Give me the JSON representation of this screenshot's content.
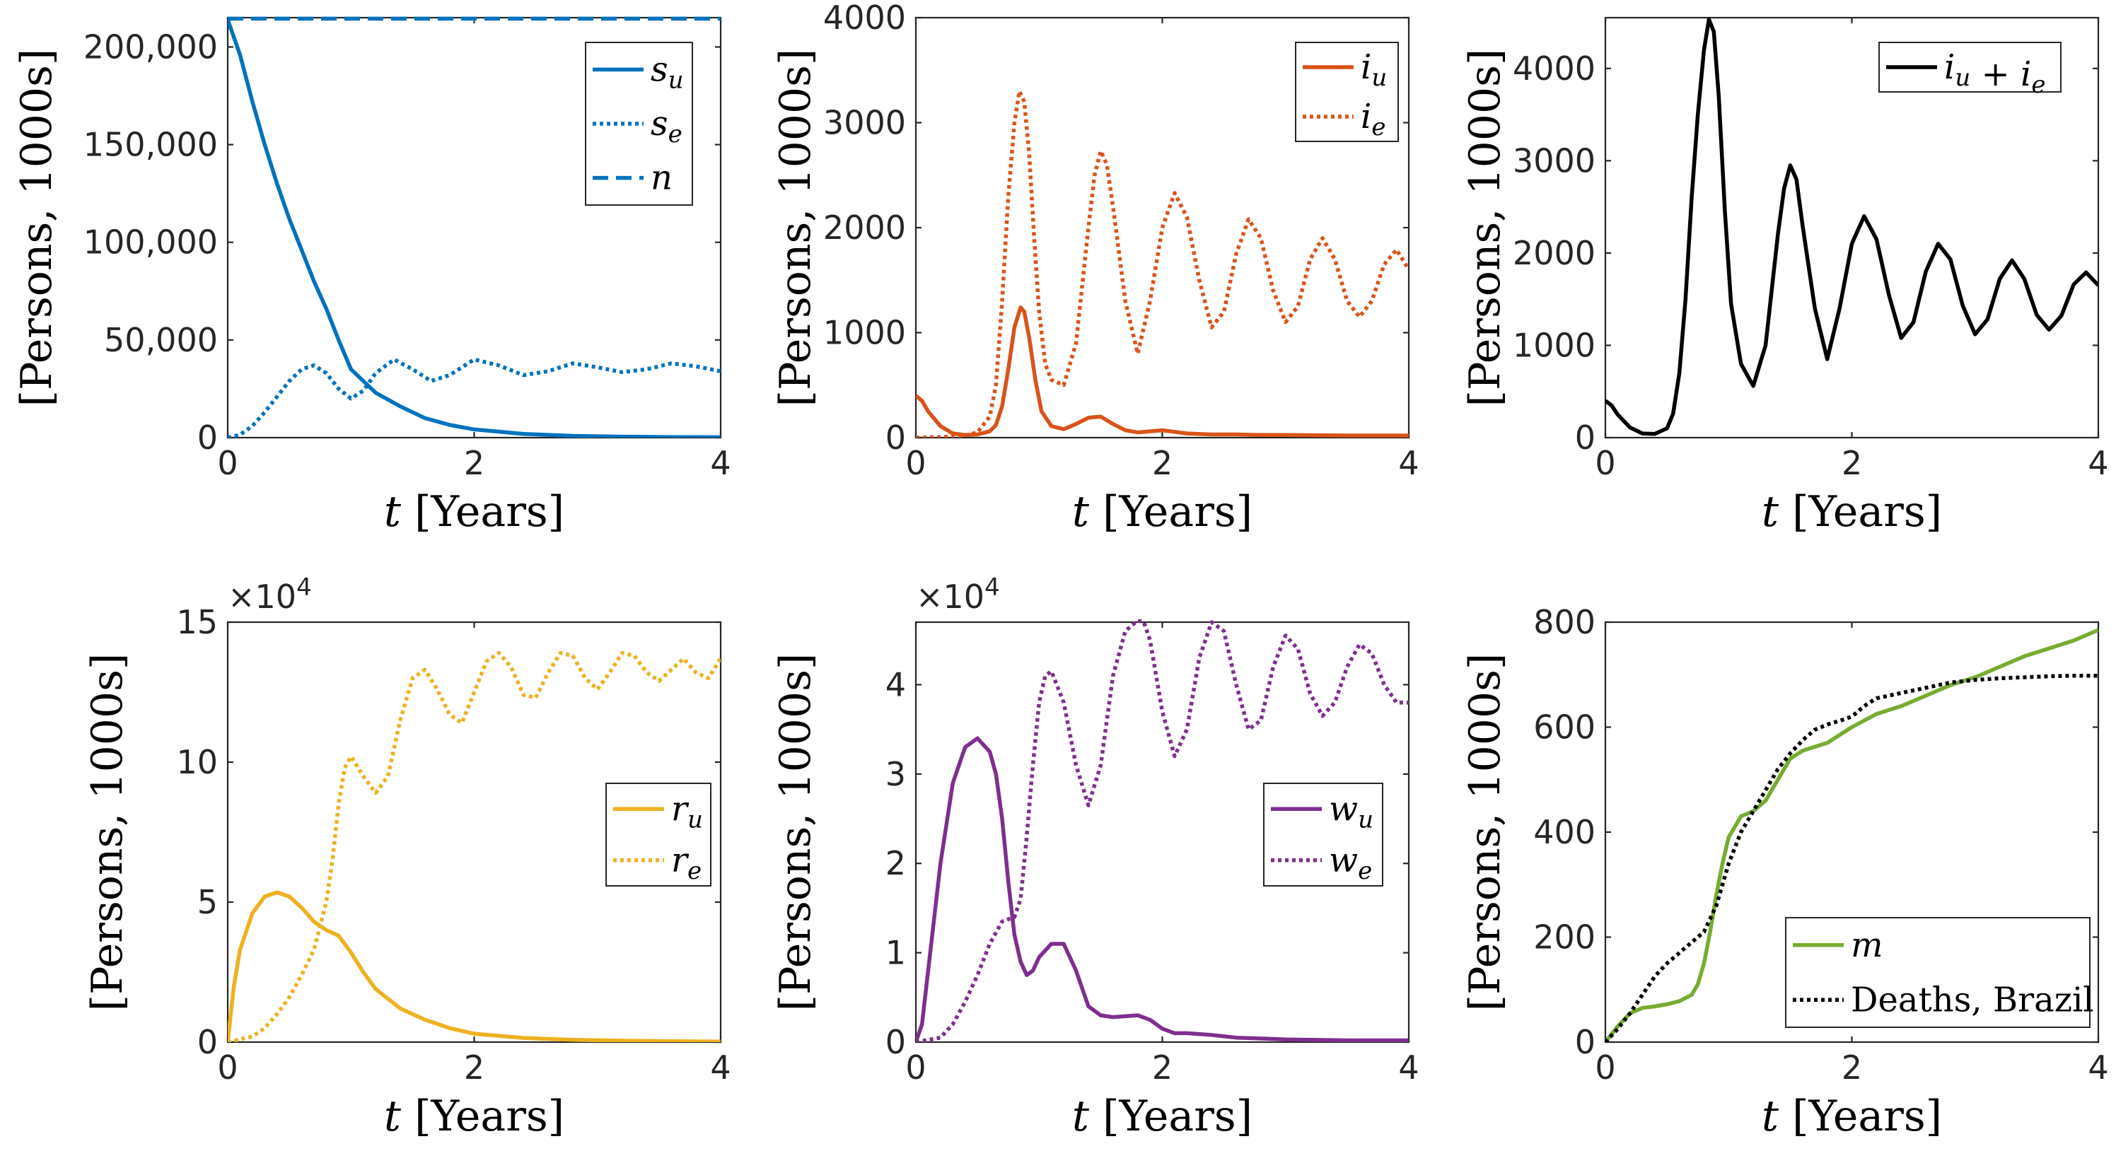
{
  "chart_data": [
    {
      "type": "line",
      "xlabel": "t [Years]",
      "ylabel": "[Persons, 1000s]",
      "xlim": [
        0,
        4
      ],
      "ylim": [
        0,
        215000
      ],
      "xticks": [
        0,
        2,
        4
      ],
      "xtick_labels": [
        "0",
        "2",
        "4"
      ],
      "yticks": [
        0,
        50000,
        100000,
        150000,
        200000
      ],
      "ytick_labels": [
        "0",
        "50,000",
        "100,000",
        "150,000",
        "200,000"
      ],
      "legend_position": "top-right",
      "series": [
        {
          "name": "s_u",
          "color": "#0072BD",
          "style": "solid",
          "x": [
            0,
            0.1,
            0.2,
            0.3,
            0.4,
            0.5,
            0.6,
            0.7,
            0.8,
            0.9,
            1.0,
            1.2,
            1.4,
            1.6,
            1.8,
            2.0,
            2.4,
            2.8,
            3.2,
            3.6,
            4.0
          ],
          "y": [
            214000,
            196000,
            172000,
            150000,
            130000,
            112000,
            96000,
            80000,
            66000,
            50000,
            35000,
            23000,
            16000,
            10000,
            6500,
            4200,
            1900,
            900,
            500,
            300,
            200
          ]
        },
        {
          "name": "s_e",
          "color": "#0072BD",
          "style": "dotted",
          "x": [
            0,
            0.1,
            0.2,
            0.3,
            0.4,
            0.5,
            0.6,
            0.7,
            0.8,
            0.9,
            1.0,
            1.1,
            1.2,
            1.35,
            1.5,
            1.65,
            1.8,
            2.0,
            2.2,
            2.4,
            2.6,
            2.8,
            3.0,
            3.2,
            3.4,
            3.6,
            3.8,
            4.0
          ],
          "y": [
            0,
            1500,
            6000,
            13000,
            21000,
            29000,
            35000,
            37000,
            33000,
            25000,
            20000,
            24000,
            33000,
            40000,
            35000,
            29000,
            32000,
            40000,
            37000,
            32000,
            34000,
            38000,
            36000,
            33500,
            35000,
            38000,
            36500,
            34000
          ]
        },
        {
          "name": "n",
          "color": "#0072BD",
          "style": "dashed",
          "x": [
            0,
            1,
            2,
            3,
            4
          ],
          "y": [
            214500,
            214500,
            214500,
            214500,
            214500
          ]
        }
      ]
    },
    {
      "type": "line",
      "xlabel": "t [Years]",
      "ylabel": "[Persons, 1000s]",
      "xlim": [
        0,
        4
      ],
      "ylim": [
        0,
        4000
      ],
      "xticks": [
        0,
        2,
        4
      ],
      "xtick_labels": [
        "0",
        "2",
        "4"
      ],
      "yticks": [
        0,
        1000,
        2000,
        3000,
        4000
      ],
      "ytick_labels": [
        "0",
        "1000",
        "2000",
        "3000",
        "4000"
      ],
      "legend_position": "top-right",
      "series": [
        {
          "name": "i_u",
          "color": "#D95319",
          "style": "solid",
          "x": [
            0,
            0.05,
            0.1,
            0.2,
            0.3,
            0.4,
            0.5,
            0.6,
            0.65,
            0.7,
            0.75,
            0.8,
            0.85,
            0.88,
            0.92,
            0.97,
            1.02,
            1.1,
            1.2,
            1.3,
            1.4,
            1.5,
            1.6,
            1.7,
            1.8,
            1.9,
            2.0,
            2.1,
            2.2,
            2.4,
            2.6,
            2.8,
            3.0,
            3.5,
            4.0
          ],
          "y": [
            400,
            350,
            250,
            110,
            40,
            25,
            30,
            60,
            120,
            300,
            650,
            1050,
            1240,
            1200,
            950,
            550,
            250,
            110,
            80,
            130,
            190,
            200,
            130,
            70,
            50,
            60,
            70,
            55,
            40,
            30,
            30,
            25,
            25,
            20,
            20
          ]
        },
        {
          "name": "i_e",
          "color": "#D95319",
          "style": "dotted",
          "x": [
            0,
            0.2,
            0.4,
            0.5,
            0.6,
            0.65,
            0.7,
            0.75,
            0.8,
            0.84,
            0.88,
            0.92,
            0.96,
            1.0,
            1.05,
            1.1,
            1.2,
            1.3,
            1.4,
            1.45,
            1.5,
            1.55,
            1.6,
            1.7,
            1.8,
            1.9,
            2.0,
            2.1,
            2.2,
            2.3,
            2.4,
            2.5,
            2.6,
            2.7,
            2.8,
            2.9,
            3.0,
            3.1,
            3.2,
            3.3,
            3.4,
            3.5,
            3.6,
            3.7,
            3.8,
            3.9,
            4.0
          ],
          "y": [
            0,
            5,
            20,
            50,
            200,
            500,
            1300,
            2300,
            3000,
            3300,
            3200,
            2700,
            1900,
            1200,
            700,
            550,
            500,
            900,
            2000,
            2500,
            2730,
            2600,
            2200,
            1300,
            800,
            1300,
            2000,
            2330,
            2100,
            1500,
            1050,
            1200,
            1750,
            2080,
            1900,
            1400,
            1100,
            1250,
            1700,
            1900,
            1700,
            1300,
            1150,
            1300,
            1650,
            1790,
            1600
          ]
        }
      ]
    },
    {
      "type": "line",
      "xlabel": "t [Years]",
      "ylabel": "[Persons, 1000s]",
      "xlim": [
        0,
        4
      ],
      "ylim": [
        0,
        4550
      ],
      "xticks": [
        0,
        2,
        4
      ],
      "xtick_labels": [
        "0",
        "2",
        "4"
      ],
      "yticks": [
        0,
        1000,
        2000,
        3000,
        4000
      ],
      "ytick_labels": [
        "0",
        "1000",
        "2000",
        "3000",
        "4000"
      ],
      "legend_position": "top-right",
      "series": [
        {
          "name": "i_u + i_e",
          "color": "#000000",
          "style": "solid",
          "x": [
            0,
            0.05,
            0.1,
            0.2,
            0.3,
            0.4,
            0.5,
            0.55,
            0.6,
            0.65,
            0.7,
            0.75,
            0.8,
            0.84,
            0.88,
            0.92,
            0.97,
            1.02,
            1.1,
            1.2,
            1.3,
            1.4,
            1.45,
            1.5,
            1.55,
            1.6,
            1.7,
            1.8,
            1.9,
            2.0,
            2.1,
            2.2,
            2.3,
            2.4,
            2.5,
            2.6,
            2.7,
            2.8,
            2.9,
            3.0,
            3.1,
            3.2,
            3.3,
            3.4,
            3.5,
            3.6,
            3.7,
            3.8,
            3.9,
            4.0
          ],
          "y": [
            400,
            350,
            250,
            110,
            45,
            40,
            100,
            260,
            700,
            1500,
            2600,
            3500,
            4200,
            4530,
            4400,
            3700,
            2450,
            1450,
            800,
            560,
            1000,
            2200,
            2700,
            2950,
            2800,
            2300,
            1400,
            850,
            1400,
            2100,
            2400,
            2150,
            1550,
            1080,
            1250,
            1800,
            2100,
            1930,
            1430,
            1120,
            1280,
            1720,
            1920,
            1720,
            1330,
            1170,
            1320,
            1660,
            1790,
            1650
          ]
        }
      ]
    },
    {
      "type": "line",
      "xlabel": "t [Years]",
      "ylabel": "[Persons, 1000s]",
      "exponent_label": "×10^4",
      "xlim": [
        0,
        4
      ],
      "ylim": [
        0,
        15
      ],
      "xticks": [
        0,
        2,
        4
      ],
      "xtick_labels": [
        "0",
        "2",
        "4"
      ],
      "yticks": [
        0,
        5,
        10,
        15
      ],
      "ytick_labels": [
        "0",
        "5",
        "10",
        "15"
      ],
      "legend_position": "center-right",
      "series": [
        {
          "name": "r_u",
          "color": "#EDB120",
          "style": "solid",
          "x": [
            0,
            0.05,
            0.1,
            0.2,
            0.3,
            0.4,
            0.5,
            0.6,
            0.7,
            0.8,
            0.9,
            1.0,
            1.1,
            1.2,
            1.4,
            1.6,
            1.8,
            2.0,
            2.4,
            2.8,
            3.2,
            3.6,
            4.0
          ],
          "y": [
            0,
            2.0,
            3.3,
            4.6,
            5.2,
            5.35,
            5.2,
            4.8,
            4.3,
            4.0,
            3.8,
            3.2,
            2.5,
            1.9,
            1.2,
            0.8,
            0.5,
            0.3,
            0.15,
            0.08,
            0.05,
            0.03,
            0.02
          ]
        },
        {
          "name": "r_e",
          "color": "#EDB120",
          "style": "dotted",
          "x": [
            0,
            0.2,
            0.3,
            0.4,
            0.5,
            0.6,
            0.7,
            0.8,
            0.85,
            0.9,
            0.95,
            1.0,
            1.1,
            1.2,
            1.3,
            1.4,
            1.5,
            1.6,
            1.7,
            1.8,
            1.9,
            2.0,
            2.1,
            2.2,
            2.3,
            2.4,
            2.5,
            2.6,
            2.7,
            2.8,
            2.9,
            3.0,
            3.1,
            3.2,
            3.3,
            3.4,
            3.5,
            3.6,
            3.7,
            3.8,
            3.9,
            4.0
          ],
          "y": [
            0,
            0.2,
            0.5,
            1.0,
            1.6,
            2.4,
            3.3,
            5.0,
            6.5,
            8.5,
            9.8,
            10.2,
            9.5,
            8.9,
            9.5,
            11.5,
            13.0,
            13.3,
            12.6,
            11.7,
            11.4,
            12.5,
            13.6,
            13.9,
            13.4,
            12.4,
            12.3,
            13.2,
            13.9,
            13.8,
            13.0,
            12.6,
            13.2,
            13.9,
            13.8,
            13.2,
            12.9,
            13.3,
            13.7,
            13.2,
            13.0,
            13.7
          ]
        }
      ]
    },
    {
      "type": "line",
      "xlabel": "t [Years]",
      "ylabel": "[Persons, 1000s]",
      "exponent_label": "×10^4",
      "xlim": [
        0,
        4
      ],
      "ylim": [
        0,
        4.7
      ],
      "xticks": [
        0,
        2,
        4
      ],
      "xtick_labels": [
        "0",
        "2",
        "4"
      ],
      "yticks": [
        0,
        1,
        2,
        3,
        4
      ],
      "ytick_labels": [
        "0",
        "1",
        "2",
        "3",
        "4"
      ],
      "legend_position": "center-right",
      "series": [
        {
          "name": "w_u",
          "color": "#7E2F8E",
          "style": "solid",
          "x": [
            0,
            0.05,
            0.1,
            0.2,
            0.3,
            0.4,
            0.5,
            0.6,
            0.65,
            0.7,
            0.75,
            0.8,
            0.85,
            0.9,
            0.95,
            1.0,
            1.1,
            1.2,
            1.3,
            1.4,
            1.5,
            1.6,
            1.8,
            1.9,
            2.0,
            2.1,
            2.2,
            2.4,
            2.6,
            2.8,
            3.0,
            3.5,
            4.0
          ],
          "y": [
            0,
            0.2,
            0.8,
            2.0,
            2.9,
            3.3,
            3.4,
            3.25,
            3.0,
            2.5,
            1.8,
            1.2,
            0.9,
            0.75,
            0.8,
            0.95,
            1.1,
            1.1,
            0.8,
            0.4,
            0.3,
            0.28,
            0.3,
            0.25,
            0.15,
            0.1,
            0.1,
            0.08,
            0.05,
            0.04,
            0.03,
            0.02,
            0.02
          ]
        },
        {
          "name": "w_e",
          "color": "#7E2F8E",
          "style": "dotted",
          "x": [
            0,
            0.2,
            0.3,
            0.4,
            0.5,
            0.6,
            0.7,
            0.8,
            0.85,
            0.9,
            0.95,
            1.0,
            1.05,
            1.1,
            1.2,
            1.3,
            1.4,
            1.5,
            1.6,
            1.7,
            1.8,
            1.85,
            1.9,
            2.0,
            2.1,
            2.2,
            2.3,
            2.4,
            2.5,
            2.6,
            2.7,
            2.8,
            2.9,
            3.0,
            3.1,
            3.2,
            3.3,
            3.4,
            3.5,
            3.6,
            3.7,
            3.8,
            3.9,
            4.0
          ],
          "y": [
            0,
            0.05,
            0.2,
            0.45,
            0.75,
            1.1,
            1.35,
            1.4,
            1.6,
            2.3,
            3.1,
            3.8,
            4.1,
            4.15,
            3.8,
            3.1,
            2.65,
            3.1,
            4.1,
            4.6,
            4.72,
            4.7,
            4.5,
            3.7,
            3.2,
            3.5,
            4.3,
            4.7,
            4.6,
            4.0,
            3.5,
            3.6,
            4.2,
            4.55,
            4.4,
            3.9,
            3.65,
            3.8,
            4.2,
            4.45,
            4.35,
            4.0,
            3.8,
            3.8
          ]
        }
      ]
    },
    {
      "type": "line",
      "xlabel": "t [Years]",
      "ylabel": "[Persons, 1000s]",
      "xlim": [
        0,
        4
      ],
      "ylim": [
        0,
        800
      ],
      "xticks": [
        0,
        2,
        4
      ],
      "xtick_labels": [
        "0",
        "2",
        "4"
      ],
      "yticks": [
        0,
        200,
        400,
        600,
        800
      ],
      "ytick_labels": [
        "0",
        "200",
        "400",
        "600",
        "800"
      ],
      "legend_position": "bottom-right",
      "series": [
        {
          "name": "m",
          "color": "#77AC30",
          "style": "solid",
          "x": [
            0,
            0.1,
            0.2,
            0.3,
            0.4,
            0.5,
            0.6,
            0.7,
            0.75,
            0.8,
            0.85,
            0.9,
            0.95,
            1.0,
            1.1,
            1.2,
            1.3,
            1.4,
            1.5,
            1.6,
            1.8,
            2.0,
            2.2,
            2.4,
            2.6,
            2.8,
            3.0,
            3.2,
            3.4,
            3.6,
            3.8,
            4.0
          ],
          "y": [
            0,
            30,
            55,
            65,
            68,
            72,
            78,
            90,
            110,
            150,
            210,
            280,
            340,
            390,
            430,
            440,
            460,
            500,
            540,
            555,
            570,
            600,
            625,
            640,
            660,
            680,
            695,
            715,
            735,
            750,
            765,
            785
          ]
        },
        {
          "name": "Deaths, Brazil",
          "color": "#000000",
          "style": "dotted",
          "x": [
            0,
            0.1,
            0.2,
            0.3,
            0.4,
            0.5,
            0.6,
            0.7,
            0.8,
            0.9,
            1.0,
            1.1,
            1.2,
            1.3,
            1.4,
            1.5,
            1.6,
            1.7,
            1.8,
            1.9,
            2.0,
            2.1,
            2.2,
            2.4,
            2.6,
            2.8,
            3.0,
            3.2,
            3.4,
            3.6,
            3.8,
            4.0
          ],
          "y": [
            0,
            25,
            55,
            90,
            125,
            150,
            170,
            190,
            210,
            260,
            340,
            400,
            440,
            480,
            520,
            550,
            575,
            595,
            605,
            612,
            620,
            640,
            655,
            665,
            675,
            685,
            690,
            693,
            695,
            697,
            698,
            698
          ]
        }
      ]
    }
  ]
}
